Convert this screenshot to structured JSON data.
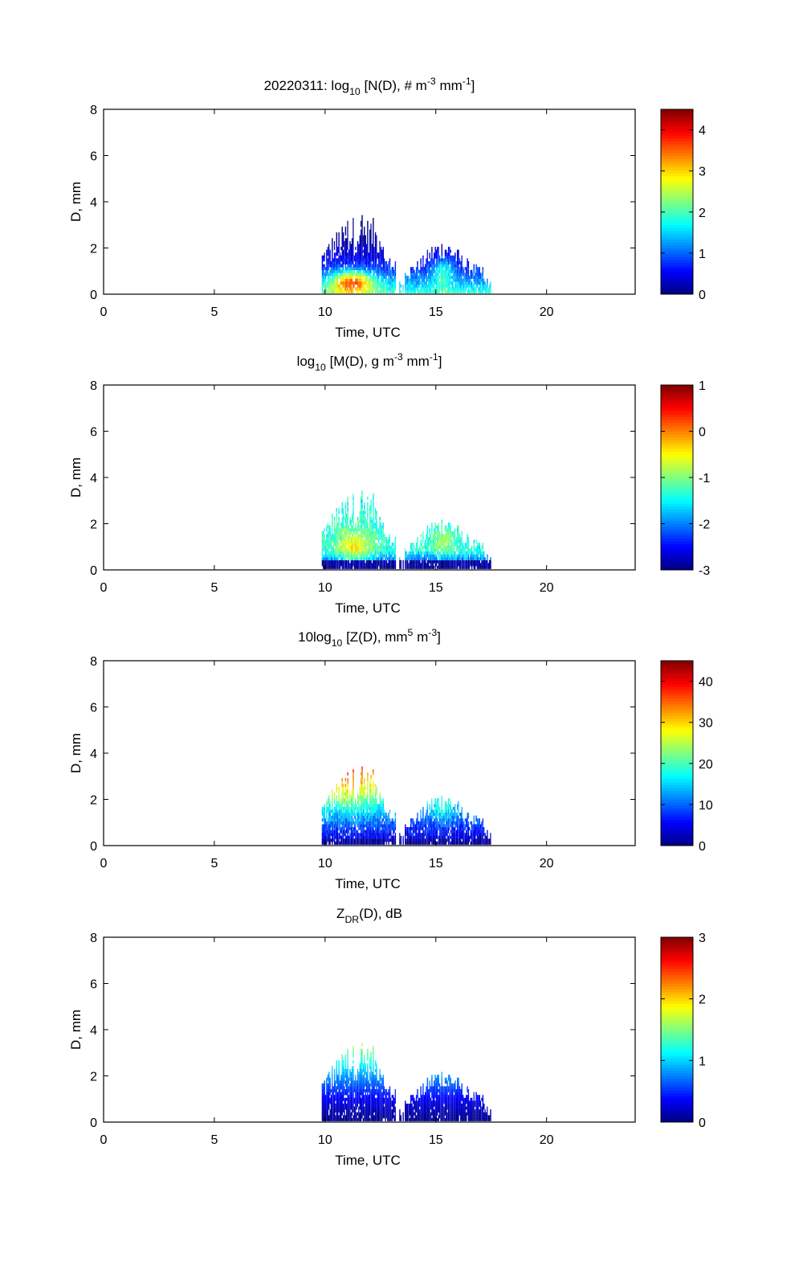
{
  "figure": {
    "date": "20220311"
  },
  "chart_data": [
    {
      "type": "heatmap",
      "id": "nd",
      "title": "20220311: log10 [N(D), # m-3 mm-1]",
      "title_parts": {
        "prefix": "20220311: log",
        "sub": "10",
        "mid": " [N(D), # m",
        "sup1": "-3",
        "mid2": " mm",
        "sup2": "-1",
        "suffix": "]"
      },
      "xlabel": "Time, UTC",
      "ylabel": "D, mm",
      "xlim": [
        0,
        24
      ],
      "ylim": [
        0,
        8
      ],
      "xticks": [
        0,
        5,
        10,
        15,
        20
      ],
      "yticks": [
        0,
        2,
        4,
        6,
        8
      ],
      "colormap": "jet",
      "clim": [
        0,
        4.5
      ],
      "colorbar_ticks": [
        0,
        1,
        2,
        3,
        4
      ],
      "data_extent": {
        "time_start": 9.85,
        "time_end": 17.5,
        "max_D": 3.9
      },
      "features": [
        {
          "name": "event-1",
          "time_range": [
            9.85,
            13.2
          ],
          "peak_time": 11.2,
          "peak_D": 0.5,
          "peak_value": 4.1,
          "max_D": 3.9
        },
        {
          "name": "event-2",
          "time_range": [
            13.6,
            17.5
          ],
          "peak_time": 15.3,
          "peak_D": 1.0,
          "peak_value": 2.2,
          "max_D": 2.5
        }
      ]
    },
    {
      "type": "heatmap",
      "id": "md",
      "title": "log10 [M(D), g m-3 mm-1]",
      "title_parts": {
        "prefix": "log",
        "sub": "10",
        "mid": " [M(D), g m",
        "sup1": "-3",
        "mid2": " mm",
        "sup2": "-1",
        "suffix": "]"
      },
      "xlabel": "Time, UTC",
      "ylabel": "D, mm",
      "xlim": [
        0,
        24
      ],
      "ylim": [
        0,
        8
      ],
      "xticks": [
        0,
        5,
        10,
        15,
        20
      ],
      "yticks": [
        0,
        2,
        4,
        6,
        8
      ],
      "colormap": "jet",
      "clim": [
        -3,
        1
      ],
      "colorbar_ticks": [
        -3,
        -2,
        -1,
        0,
        1
      ],
      "data_extent": {
        "time_start": 9.85,
        "time_end": 17.5,
        "max_D": 3.9
      },
      "features": [
        {
          "name": "event-1",
          "time_range": [
            9.85,
            13.2
          ],
          "peak_time": 11.3,
          "peak_D": 0.9,
          "peak_value": -0.6,
          "max_D": 3.9
        },
        {
          "name": "event-2",
          "time_range": [
            13.6,
            17.5
          ],
          "peak_time": 15.3,
          "peak_D": 1.2,
          "peak_value": -1.3,
          "max_D": 2.5
        }
      ]
    },
    {
      "type": "heatmap",
      "id": "zd",
      "title": "10log10 [Z(D),  mm5 m-3]",
      "title_parts": {
        "prefix": "10log",
        "sub": "10",
        "mid": " [Z(D),  mm",
        "sup1": "5",
        "mid2": " m",
        "sup2": "-3",
        "suffix": "]"
      },
      "xlabel": "Time, UTC",
      "ylabel": "D, mm",
      "xlim": [
        0,
        24
      ],
      "ylim": [
        0,
        8
      ],
      "xticks": [
        0,
        5,
        10,
        15,
        20
      ],
      "yticks": [
        0,
        2,
        4,
        6,
        8
      ],
      "colormap": "jet",
      "clim": [
        0,
        45
      ],
      "colorbar_ticks": [
        0,
        10,
        20,
        30,
        40
      ],
      "data_extent": {
        "time_start": 9.85,
        "time_end": 17.5,
        "max_D": 3.9
      },
      "features": [
        {
          "name": "event-1",
          "time_range": [
            9.85,
            13.2
          ],
          "peak_time": 11.0,
          "peak_D": 2.8,
          "peak_value": 38,
          "max_D": 3.9
        },
        {
          "name": "event-2",
          "time_range": [
            13.6,
            17.5
          ],
          "peak_time": 15.3,
          "peak_D": 1.5,
          "peak_value": 26,
          "max_D": 2.5
        }
      ]
    },
    {
      "type": "heatmap",
      "id": "zdr",
      "title": "ZDR(D), dB",
      "title_parts": {
        "prefix": "Z",
        "sub": "DR",
        "mid": "(D), dB",
        "sup1": "",
        "mid2": "",
        "sup2": "",
        "suffix": ""
      },
      "xlabel": "Time, UTC",
      "ylabel": "D, mm",
      "xlim": [
        0,
        24
      ],
      "ylim": [
        0,
        8
      ],
      "xticks": [
        0,
        5,
        10,
        15,
        20
      ],
      "yticks": [
        0,
        2,
        4,
        6,
        8
      ],
      "colormap": "jet",
      "clim": [
        0,
        3
      ],
      "colorbar_ticks": [
        0,
        1,
        2,
        3
      ],
      "data_extent": {
        "time_start": 9.85,
        "time_end": 17.5,
        "max_D": 3.9
      },
      "features": [
        {
          "name": "event-1",
          "time_range": [
            9.85,
            13.2
          ],
          "peak_time": 11.0,
          "peak_D": 3.7,
          "peak_value": 1.9,
          "max_D": 3.9
        },
        {
          "name": "event-2",
          "time_range": [
            13.6,
            17.5
          ],
          "peak_time": 14.6,
          "peak_D": 2.3,
          "peak_value": 1.0,
          "max_D": 2.5
        }
      ]
    }
  ]
}
